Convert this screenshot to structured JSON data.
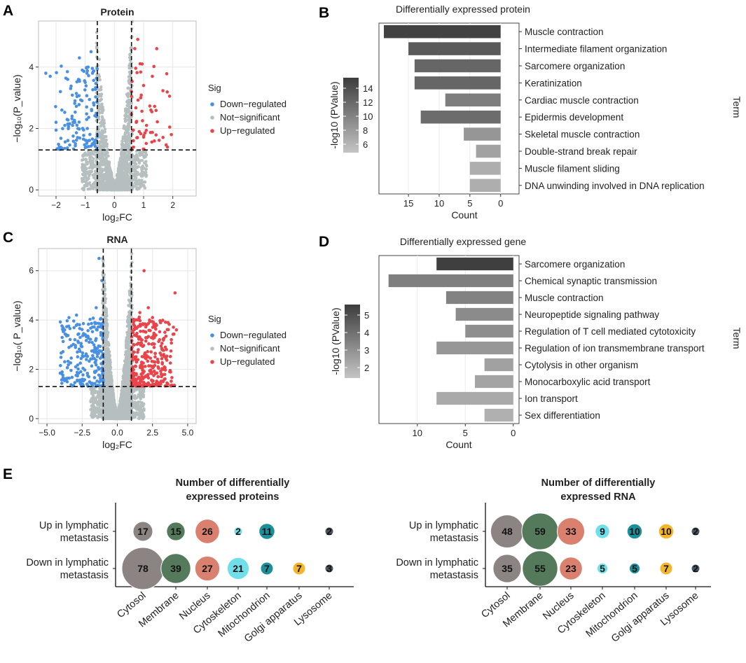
{
  "colors": {
    "down": "#4a90e2",
    "up": "#e8444a",
    "ns": "#b6bfbf",
    "grid": "#e6e6e6",
    "panel_border": "#444444",
    "cytosol": "#8c8383",
    "membrane": "#557a5b",
    "nucleus": "#d9806f",
    "cytoskeleton": "#6fe0ea",
    "mitochondrion": "#1b8f9a",
    "golgi": "#f5b52a",
    "lysosome": "#4a5560"
  },
  "panel_labels": {
    "a": "A",
    "b": "B",
    "c": "C",
    "d": "D",
    "e": "E"
  },
  "chart_data": [
    {
      "id": "A",
      "type": "scatter",
      "title": "Protein",
      "xlabel": "log₂FC",
      "ylabel": "−log₁₀(P_value)",
      "xlim": [
        -2.6,
        2.8
      ],
      "ylim": [
        -0.2,
        5.5
      ],
      "xticks": [
        -2,
        -1,
        0,
        1,
        2
      ],
      "xtick_labels": [
        "−2",
        "−1",
        "0",
        "1",
        "2"
      ],
      "yticks": [
        0,
        2,
        4
      ],
      "vlines": [
        -0.585,
        0.585
      ],
      "hline": 1.301,
      "legend": {
        "title": "Sig",
        "entries": [
          "Down−regulated",
          "Not−significant",
          "Up−regulated"
        ]
      },
      "n_not_significant": 1400,
      "n_down": 120,
      "n_up": 48,
      "down_points": [
        [
          -2.35,
          3.8
        ],
        [
          -2.2,
          3.7
        ],
        [
          -1.85,
          3.2
        ],
        [
          -1.6,
          3.6
        ],
        [
          -1.5,
          3.3
        ],
        [
          -1.35,
          2.9
        ],
        [
          -2.0,
          2.2
        ],
        [
          -1.8,
          2.6
        ],
        [
          -1.7,
          2.1
        ],
        [
          -1.2,
          4.3
        ],
        [
          -1.1,
          3.9
        ],
        [
          -1.0,
          3.5
        ],
        [
          -0.9,
          4.0
        ],
        [
          -0.8,
          4.5
        ],
        [
          -0.75,
          3.8
        ],
        [
          -1.45,
          2.4
        ],
        [
          -1.25,
          2.0
        ],
        [
          -0.95,
          2.7
        ]
      ],
      "up_points": [
        [
          0.7,
          4.6
        ],
        [
          0.8,
          4.9
        ],
        [
          1.45,
          4.6
        ],
        [
          1.3,
          3.7
        ],
        [
          1.25,
          2.6
        ],
        [
          1.0,
          3.4
        ],
        [
          0.9,
          3.0
        ],
        [
          0.75,
          2.2
        ],
        [
          0.85,
          1.9
        ],
        [
          1.1,
          2.1
        ],
        [
          0.95,
          4.1
        ],
        [
          0.65,
          1.6
        ]
      ]
    },
    {
      "id": "B",
      "type": "bar",
      "title": "Differentially expressed protein",
      "xlabel": "Count",
      "ylabel": "Term",
      "colorbar_label": "-log10 (PValue)",
      "colorbar_ticks": [
        6,
        8,
        10,
        12,
        14
      ],
      "colorbar_range": [
        4.8,
        15.5
      ],
      "xlim": [
        19.8,
        -3
      ],
      "xticks": [
        15,
        10,
        5,
        0
      ],
      "categories": [
        "Muscle contraction",
        "Intermediate filament organization",
        "Sarcomere organization",
        "Keratinization",
        "Cardiac muscle contraction",
        "Epidermis development",
        "Skeletal muscle contraction",
        "Double-strand break repair",
        "Muscle filament sliding",
        "DNA unwinding involved in DNA replication"
      ],
      "values": [
        19,
        15,
        14,
        14,
        9,
        13,
        6,
        4,
        5,
        5
      ],
      "pvalue_log": [
        15,
        13,
        12,
        12,
        10,
        11.5,
        8,
        7,
        6,
        6
      ]
    },
    {
      "id": "C",
      "type": "scatter",
      "title": "RNA",
      "xlabel": "log₂FC",
      "ylabel": "−log₁₀( P_value)",
      "xlim": [
        -5.6,
        5.6
      ],
      "ylim": [
        -0.2,
        6.9
      ],
      "xticks": [
        -5,
        -2.5,
        0,
        2.5,
        5
      ],
      "xtick_labels": [
        "−5.0",
        "−2.5",
        "0.0",
        "2.5",
        "5.0"
      ],
      "yticks": [
        0,
        2,
        4,
        6
      ],
      "vlines": [
        -1,
        1
      ],
      "hline": 1.301,
      "legend": {
        "title": "Sig",
        "entries": [
          "Down−regulated",
          "Not−significant",
          "Up−regulated"
        ]
      },
      "n_not_significant": 2400,
      "n_down": 230,
      "n_up": 320,
      "down_points": [
        [
          -2.9,
          4.2
        ],
        [
          -2.6,
          1.9
        ],
        [
          -2.0,
          3.1
        ],
        [
          -2.2,
          2.4
        ],
        [
          -1.6,
          3.9
        ],
        [
          -1.3,
          6.5
        ],
        [
          -1.1,
          5.6
        ],
        [
          -1.5,
          4.5
        ]
      ],
      "up_points": [
        [
          4.1,
          5.1
        ],
        [
          4.2,
          3.6
        ],
        [
          3.6,
          3.9
        ],
        [
          3.3,
          2.6
        ],
        [
          3.0,
          3.2
        ],
        [
          2.9,
          2.1
        ],
        [
          1.9,
          6.0
        ],
        [
          2.5,
          4.1
        ],
        [
          1.6,
          4.3
        ],
        [
          2.2,
          4.5
        ]
      ]
    },
    {
      "id": "D",
      "type": "bar",
      "title": "Differentially expressed gene",
      "xlabel": "Count",
      "ylabel": "Term",
      "colorbar_label": "-log10 (PValue)",
      "colorbar_ticks": [
        2,
        3,
        4,
        5
      ],
      "colorbar_range": [
        1.4,
        5.6
      ],
      "xlim": [
        14,
        -0.6
      ],
      "xticks": [
        10,
        5,
        0
      ],
      "categories": [
        "Sarcomere organization",
        "Chemical synaptic transmission",
        "Muscle contraction",
        "Neuropeptide signaling pathway",
        "Regulation of T cell mediated cytotoxicity",
        "Regulation of ion transmembrane transport",
        "Cytolysis in other organism",
        "Monocarboxylic acid transport",
        "Ion transport",
        "Sex differentiation"
      ],
      "values": [
        8,
        13,
        7,
        6,
        5,
        8,
        3,
        4,
        8,
        3
      ],
      "pvalue_log": [
        5.5,
        3.4,
        3.3,
        3.0,
        2.9,
        2.6,
        2.3,
        2.2,
        2.0,
        1.8
      ]
    },
    {
      "id": "E1",
      "type": "bubble",
      "title": "Number of differentially expressed proteins",
      "title_lines": [
        "Number of differentially",
        "expressed proteins"
      ],
      "rows": [
        [
          "Up in lymphatic",
          "metastasis"
        ],
        [
          "Down in lymphatic",
          "metastasis"
        ]
      ],
      "columns": [
        "Cytosol",
        "Membrane",
        "Nucleus",
        "Cytoskeleton",
        "Mitochondrion",
        "Golgi apparatus",
        "Lysosome"
      ],
      "values": [
        [
          17,
          15,
          26,
          2,
          11,
          null,
          2
        ],
        [
          78,
          39,
          27,
          21,
          7,
          7,
          3
        ]
      ]
    },
    {
      "id": "E2",
      "type": "bubble",
      "title": "Number of differentially expressed RNA",
      "title_lines": [
        "Number of differentially",
        "expressed RNA"
      ],
      "rows": [
        [
          "Up in lymphatic",
          "metastasis"
        ],
        [
          "Down in lymphatic",
          "metastasis"
        ]
      ],
      "columns": [
        "Cytosol",
        "Membrane",
        "Nucleus",
        "Cytoskeleton",
        "Mitochondrion",
        "Golgi apparatus",
        "Lysosome"
      ],
      "values": [
        [
          48,
          59,
          33,
          9,
          10,
          10,
          2
        ],
        [
          35,
          55,
          23,
          5,
          5,
          7,
          2
        ]
      ]
    }
  ]
}
